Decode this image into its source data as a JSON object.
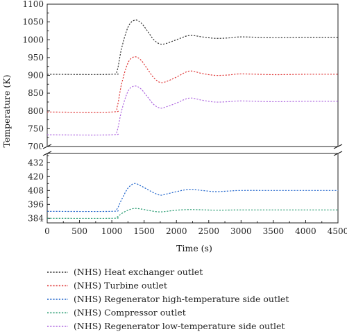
{
  "chart_data": {
    "type": "line",
    "xlabel": "Time (s)",
    "ylabel": "Temperature (K)",
    "xlim": [
      0,
      4500
    ],
    "x_ticks": [
      0,
      500,
      1000,
      1500,
      2000,
      2500,
      3000,
      3500,
      4000,
      4500
    ],
    "y_axis_break": true,
    "upper_ylim": [
      700,
      1100
    ],
    "upper_y_ticks": [
      700,
      750,
      800,
      850,
      900,
      950,
      1000,
      1050,
      1100
    ],
    "lower_ylim": [
      380,
      440
    ],
    "lower_y_ticks": [
      384,
      396,
      408,
      420,
      432
    ],
    "grid": false,
    "legend_position": "below",
    "series": [
      {
        "name": "(NHS) Heat exchanger outlet",
        "color": "#333333",
        "panel": "upper",
        "points": [
          [
            0,
            903
          ],
          [
            1000,
            903
          ],
          [
            1080,
            912
          ],
          [
            1150,
            975
          ],
          [
            1250,
            1035
          ],
          [
            1350,
            1055
          ],
          [
            1450,
            1048
          ],
          [
            1550,
            1025
          ],
          [
            1650,
            1000
          ],
          [
            1750,
            988
          ],
          [
            1850,
            990
          ],
          [
            2000,
            1000
          ],
          [
            2200,
            1012
          ],
          [
            2400,
            1008
          ],
          [
            2600,
            1004
          ],
          [
            2800,
            1005
          ],
          [
            3000,
            1008
          ],
          [
            3500,
            1006
          ],
          [
            4000,
            1007
          ],
          [
            4500,
            1007
          ]
        ]
      },
      {
        "name": "(NHS) Turbine outlet",
        "color": "#e03b3b",
        "panel": "upper",
        "points": [
          [
            0,
            797
          ],
          [
            1000,
            797
          ],
          [
            1080,
            810
          ],
          [
            1150,
            875
          ],
          [
            1250,
            935
          ],
          [
            1350,
            952
          ],
          [
            1450,
            943
          ],
          [
            1550,
            918
          ],
          [
            1650,
            893
          ],
          [
            1750,
            880
          ],
          [
            1850,
            883
          ],
          [
            2000,
            895
          ],
          [
            2200,
            912
          ],
          [
            2400,
            905
          ],
          [
            2600,
            900
          ],
          [
            2800,
            901
          ],
          [
            3000,
            904
          ],
          [
            3500,
            902
          ],
          [
            4000,
            903
          ],
          [
            4500,
            903
          ]
        ]
      },
      {
        "name": "(NHS) Regenerator high-temperature side outlet",
        "color": "#2266cc",
        "panel": "lower",
        "points": [
          [
            0,
            390
          ],
          [
            1000,
            390
          ],
          [
            1080,
            392
          ],
          [
            1150,
            400
          ],
          [
            1250,
            410
          ],
          [
            1350,
            414
          ],
          [
            1450,
            412
          ],
          [
            1550,
            409
          ],
          [
            1650,
            406
          ],
          [
            1750,
            404
          ],
          [
            1850,
            405
          ],
          [
            2000,
            407
          ],
          [
            2200,
            409
          ],
          [
            2400,
            408
          ],
          [
            2600,
            407
          ],
          [
            2800,
            407.5
          ],
          [
            3000,
            408
          ],
          [
            3500,
            408
          ],
          [
            4000,
            408
          ],
          [
            4500,
            408
          ]
        ]
      },
      {
        "name": "(NHS) Compressor outlet",
        "color": "#22996e",
        "panel": "lower",
        "points": [
          [
            0,
            384
          ],
          [
            1000,
            384
          ],
          [
            1080,
            385
          ],
          [
            1150,
            388
          ],
          [
            1250,
            391
          ],
          [
            1350,
            392.5
          ],
          [
            1450,
            392
          ],
          [
            1550,
            391
          ],
          [
            1650,
            390
          ],
          [
            1750,
            389.5
          ],
          [
            1850,
            390
          ],
          [
            2000,
            391
          ],
          [
            2200,
            391.5
          ],
          [
            2400,
            391.3
          ],
          [
            2600,
            391
          ],
          [
            2800,
            391.1
          ],
          [
            3000,
            391.2
          ],
          [
            3500,
            391.2
          ],
          [
            4000,
            391.2
          ],
          [
            4500,
            391.2
          ]
        ]
      },
      {
        "name": "(NHS) Regenerator low-temperature side outlet",
        "color": "#b06be0",
        "panel": "upper",
        "points": [
          [
            0,
            733
          ],
          [
            1000,
            733
          ],
          [
            1080,
            743
          ],
          [
            1150,
            800
          ],
          [
            1250,
            855
          ],
          [
            1350,
            870
          ],
          [
            1450,
            862
          ],
          [
            1550,
            840
          ],
          [
            1650,
            818
          ],
          [
            1750,
            808
          ],
          [
            1850,
            812
          ],
          [
            2000,
            822
          ],
          [
            2200,
            836
          ],
          [
            2400,
            830
          ],
          [
            2600,
            825
          ],
          [
            2800,
            826
          ],
          [
            3000,
            828
          ],
          [
            3500,
            826
          ],
          [
            4000,
            827
          ],
          [
            4500,
            827
          ]
        ]
      }
    ]
  }
}
